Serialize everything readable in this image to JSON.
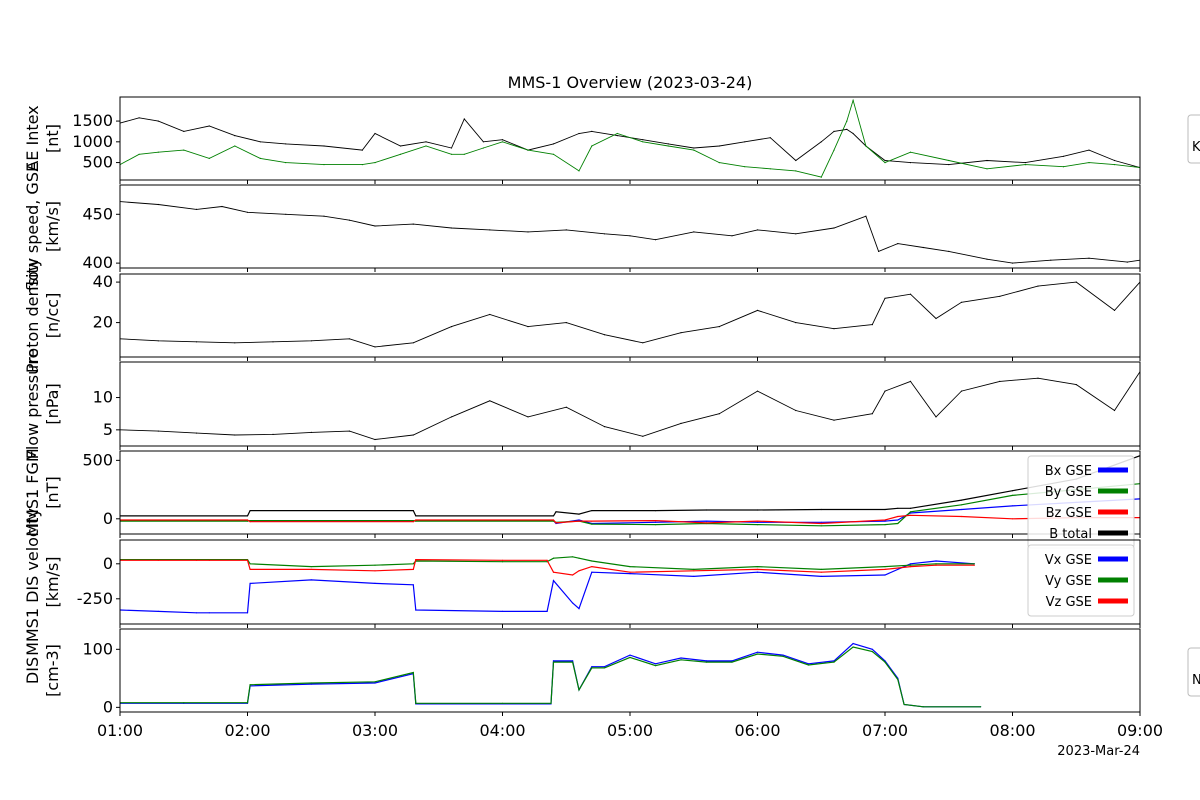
{
  "title": "MMS-1 Overview (2023-03-24)",
  "date_label": "2023-Mar-24",
  "x_tick_labels": [
    "01:00",
    "02:00",
    "03:00",
    "04:00",
    "05:00",
    "06:00",
    "07:00",
    "08:00",
    "09:00"
  ],
  "side_tabs": [
    "K",
    "N"
  ],
  "chart_data": [
    {
      "type": "line",
      "ylabel": "AE Intex",
      "yunits": "[nt]",
      "ylim": [
        80,
        2080
      ],
      "yticks": [
        500,
        1000,
        1500
      ],
      "x": [
        1.0,
        1.15,
        1.3,
        1.5,
        1.7,
        1.9,
        2.1,
        2.3,
        2.6,
        2.9,
        3.0,
        3.2,
        3.4,
        3.6,
        3.7,
        3.85,
        4.0,
        4.2,
        4.4,
        4.6,
        4.7,
        4.9,
        5.1,
        5.3,
        5.5,
        5.7,
        5.9,
        6.1,
        6.3,
        6.5,
        6.6,
        6.7,
        6.75,
        6.85,
        7.0,
        7.2,
        7.5,
        7.8,
        8.1,
        8.4,
        8.6,
        8.8,
        9.0
      ],
      "series": [
        {
          "color": "#000000",
          "values": [
            1450,
            1580,
            1500,
            1250,
            1380,
            1150,
            1000,
            950,
            900,
            800,
            1200,
            900,
            1000,
            850,
            1550,
            1000,
            1050,
            800,
            950,
            1200,
            1250,
            1150,
            1050,
            950,
            850,
            900,
            1000,
            1100,
            550,
            1000,
            1250,
            1300,
            1200,
            900,
            550,
            500,
            450,
            550,
            500,
            650,
            800,
            550,
            380
          ]
        },
        {
          "color": "#008000",
          "values": [
            450,
            700,
            750,
            800,
            600,
            900,
            600,
            500,
            450,
            450,
            500,
            700,
            900,
            700,
            700,
            850,
            1000,
            800,
            700,
            300,
            900,
            1200,
            1000,
            900,
            800,
            500,
            400,
            350,
            300,
            150,
            800,
            1500,
            2000,
            900,
            500,
            750,
            550,
            350,
            450,
            400,
            500,
            450,
            380
          ]
        }
      ]
    },
    {
      "type": "line",
      "ylabel": "flow speed, GSE",
      "yunits": "[km/s]",
      "ylim": [
        395,
        480
      ],
      "yticks": [
        400,
        450
      ],
      "x": [
        1.0,
        1.3,
        1.6,
        1.8,
        2.0,
        2.3,
        2.6,
        2.8,
        3.0,
        3.3,
        3.6,
        3.9,
        4.2,
        4.5,
        4.8,
        5.0,
        5.2,
        5.5,
        5.8,
        6.0,
        6.3,
        6.6,
        6.85,
        6.95,
        7.1,
        7.3,
        7.5,
        7.8,
        8.0,
        8.3,
        8.6,
        8.9,
        9.0
      ],
      "series": [
        {
          "color": "#000000",
          "values": [
            463,
            460,
            455,
            458,
            452,
            450,
            448,
            444,
            438,
            440,
            436,
            434,
            432,
            434,
            430,
            428,
            424,
            432,
            428,
            434,
            430,
            436,
            448,
            412,
            420,
            416,
            412,
            404,
            400,
            403,
            405,
            401,
            403
          ]
        }
      ]
    },
    {
      "type": "line",
      "ylabel": "Proton density",
      "yunits": "[n/cc]",
      "ylim": [
        3,
        44
      ],
      "yticks": [
        20,
        40
      ],
      "x": [
        1.0,
        1.3,
        1.6,
        1.9,
        2.2,
        2.5,
        2.8,
        3.0,
        3.3,
        3.6,
        3.9,
        4.2,
        4.5,
        4.8,
        5.1,
        5.4,
        5.7,
        6.0,
        6.3,
        6.6,
        6.9,
        7.0,
        7.2,
        7.4,
        7.6,
        7.9,
        8.2,
        8.5,
        8.8,
        9.0
      ],
      "series": [
        {
          "color": "#000000",
          "values": [
            12,
            11,
            10.5,
            10,
            10.5,
            11,
            12,
            8,
            10,
            18,
            24,
            18,
            20,
            14,
            10,
            15,
            18,
            26,
            20,
            17,
            19,
            32,
            34,
            22,
            30,
            33,
            38,
            40,
            26,
            40
          ]
        }
      ]
    },
    {
      "type": "line",
      "ylabel": "Flow pressure",
      "yunits": "[nPa]",
      "ylim": [
        2.5,
        15.5
      ],
      "yticks": [
        5,
        10
      ],
      "x": [
        1.0,
        1.3,
        1.6,
        1.9,
        2.2,
        2.5,
        2.8,
        3.0,
        3.3,
        3.6,
        3.9,
        4.2,
        4.5,
        4.8,
        5.1,
        5.4,
        5.7,
        6.0,
        6.3,
        6.6,
        6.9,
        7.0,
        7.2,
        7.4,
        7.6,
        7.9,
        8.2,
        8.5,
        8.8,
        9.0
      ],
      "series": [
        {
          "color": "#000000",
          "values": [
            5,
            4.8,
            4.5,
            4.2,
            4.3,
            4.6,
            4.8,
            3.5,
            4.2,
            7,
            9.5,
            7,
            8.5,
            5.5,
            4,
            6,
            7.5,
            11,
            8,
            6.5,
            7.5,
            11,
            12.5,
            7,
            11,
            12.5,
            13,
            12,
            8,
            14
          ]
        }
      ]
    },
    {
      "type": "line",
      "ylabel": "MMS1 FGM",
      "yunits": "[nT]",
      "ylim": [
        -130,
        580
      ],
      "yticks": [
        0,
        500
      ],
      "x": [
        1.0,
        2.0,
        2.02,
        3.3,
        3.32,
        4.4,
        4.42,
        4.6,
        4.7,
        5.2,
        5.6,
        6.0,
        6.5,
        7.0,
        7.1,
        7.2,
        7.6,
        8.0,
        8.5,
        9.0
      ],
      "series": [
        {
          "name": "Bx GSE",
          "color": "#0000ff",
          "values": [
            -15,
            -15,
            -20,
            -20,
            -15,
            -15,
            -40,
            -10,
            -40,
            -30,
            -20,
            -30,
            -30,
            -20,
            -10,
            50,
            80,
            110,
            140,
            170
          ]
        },
        {
          "name": "By GSE",
          "color": "#008000",
          "values": [
            -20,
            -20,
            -15,
            -15,
            -20,
            -20,
            -30,
            -20,
            -45,
            -50,
            -40,
            -50,
            -60,
            -50,
            -40,
            60,
            120,
            200,
            250,
            300
          ]
        },
        {
          "name": "Bz GSE",
          "color": "#ff0000",
          "values": [
            -10,
            -10,
            -25,
            -25,
            -10,
            -10,
            -35,
            -20,
            -20,
            -15,
            -35,
            -20,
            -40,
            -10,
            20,
            30,
            20,
            0,
            10,
            10
          ]
        },
        {
          "name": "B total",
          "color": "#000000",
          "values": [
            25,
            25,
            70,
            70,
            25,
            25,
            60,
            40,
            70,
            70,
            75,
            75,
            80,
            80,
            90,
            90,
            160,
            240,
            340,
            540
          ]
        }
      ]
    },
    {
      "type": "line",
      "ylabel": "MMS1 DIS velocity",
      "yunits": "[km/s]",
      "ylim": [
        -430,
        170
      ],
      "yticks": [
        -250,
        0
      ],
      "x": [
        1.0,
        1.3,
        1.6,
        1.7,
        2.0,
        2.02,
        2.5,
        3.0,
        3.3,
        3.32,
        4.0,
        4.35,
        4.4,
        4.55,
        4.6,
        4.7,
        5.0,
        5.5,
        6.0,
        6.5,
        7.0,
        7.2,
        7.4,
        7.7
      ],
      "series": [
        {
          "name": "Vx GSE",
          "color": "#0000ff",
          "values": [
            -330,
            -340,
            -350,
            -350,
            -350,
            -140,
            -115,
            -140,
            -150,
            -330,
            -340,
            -340,
            -120,
            -280,
            -320,
            -60,
            -70,
            -90,
            -60,
            -90,
            -80,
            0,
            20,
            0
          ]
        },
        {
          "name": "Vy GSE",
          "color": "#008000",
          "values": [
            30,
            30,
            30,
            30,
            30,
            0,
            -20,
            -10,
            0,
            20,
            15,
            15,
            40,
            50,
            40,
            20,
            -20,
            -40,
            -20,
            -40,
            -20,
            -10,
            0,
            0
          ]
        },
        {
          "name": "Vz GSE",
          "color": "#ff0000",
          "values": [
            25,
            25,
            25,
            25,
            25,
            -40,
            -40,
            -50,
            -40,
            30,
            25,
            25,
            -60,
            -80,
            -50,
            -20,
            -60,
            -50,
            -40,
            -60,
            -40,
            -20,
            -10,
            -10
          ]
        }
      ]
    },
    {
      "type": "line",
      "ylabel": "DIS",
      "yunits": "[cm-3]",
      "ylim": [
        -8,
        135
      ],
      "yticks": [
        0,
        100
      ],
      "x": [
        1.0,
        1.5,
        2.0,
        2.02,
        2.5,
        3.0,
        3.3,
        3.32,
        4.0,
        4.38,
        4.4,
        4.55,
        4.6,
        4.7,
        4.8,
        5.0,
        5.2,
        5.4,
        5.6,
        5.8,
        6.0,
        6.2,
        6.4,
        6.6,
        6.75,
        6.9,
        7.0,
        7.1,
        7.15,
        7.3,
        7.75
      ],
      "series": [
        {
          "color": "#0000ff",
          "values": [
            7,
            7,
            7,
            37,
            40,
            42,
            58,
            6,
            6,
            6,
            80,
            80,
            30,
            70,
            70,
            90,
            75,
            85,
            80,
            80,
            95,
            90,
            75,
            80,
            110,
            100,
            80,
            50,
            5,
            1,
            1
          ]
        },
        {
          "color": "#008000",
          "values": [
            8,
            8,
            8,
            39,
            42,
            44,
            60,
            7,
            7,
            7,
            78,
            78,
            30,
            68,
            68,
            86,
            72,
            82,
            78,
            78,
            92,
            88,
            73,
            78,
            104,
            96,
            78,
            48,
            5,
            1,
            1
          ]
        }
      ]
    }
  ]
}
